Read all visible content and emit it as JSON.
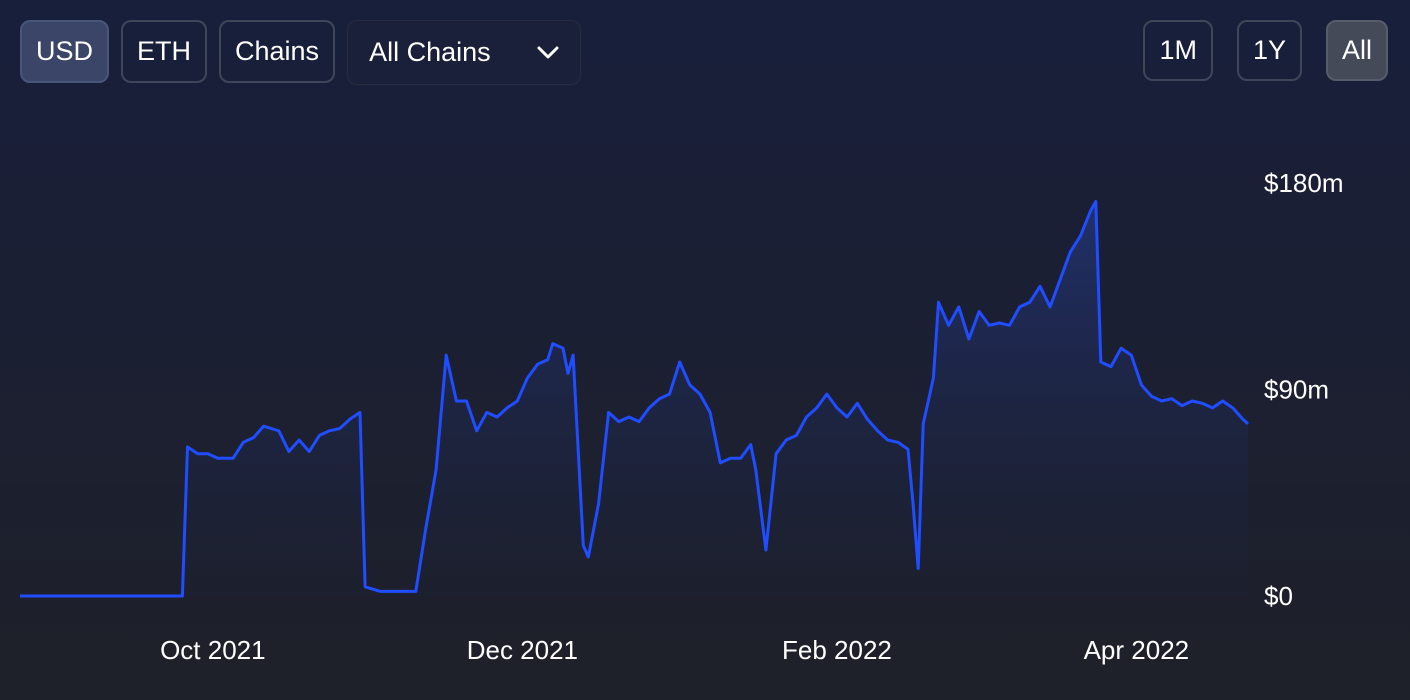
{
  "toolbar": {
    "currency_buttons": [
      {
        "label": "USD",
        "active": true
      },
      {
        "label": "ETH",
        "active": false
      },
      {
        "label": "Chains",
        "active": false
      }
    ],
    "chain_select": {
      "selected": "All Chains",
      "icon": "chevron-down-icon"
    },
    "range_buttons": [
      {
        "label": "1M",
        "active": false
      },
      {
        "label": "1Y",
        "active": false
      },
      {
        "label": "All",
        "active": true
      }
    ]
  },
  "colors": {
    "line": "#1f4dff",
    "area_top": "#243a86",
    "area_bottom": "#1a1f38"
  },
  "chart_data": {
    "type": "area",
    "title": "",
    "xlabel": "",
    "ylabel": "",
    "x_ticks": [
      "Oct 2021",
      "Dec 2021",
      "Feb 2022",
      "Apr 2022"
    ],
    "x_tick_dates": [
      "2021-10-01",
      "2021-12-01",
      "2022-02-01",
      "2022-04-01"
    ],
    "y_ticks": [
      "$180m",
      "$90m",
      "$0"
    ],
    "ylim": [
      0,
      180
    ],
    "y_unit": "$m",
    "grid": false,
    "series": [
      {
        "points": [
          [
            "2021-08-24",
            0
          ],
          [
            "2021-09-01",
            0
          ],
          [
            "2021-09-12",
            0
          ],
          [
            "2021-09-25",
            0
          ],
          [
            "2021-09-26",
            65
          ],
          [
            "2021-09-28",
            62
          ],
          [
            "2021-09-30",
            62
          ],
          [
            "2021-10-02",
            60
          ],
          [
            "2021-10-05",
            60
          ],
          [
            "2021-10-07",
            67
          ],
          [
            "2021-10-09",
            69
          ],
          [
            "2021-10-11",
            74
          ],
          [
            "2021-10-14",
            72
          ],
          [
            "2021-10-16",
            63
          ],
          [
            "2021-10-18",
            68
          ],
          [
            "2021-10-20",
            63
          ],
          [
            "2021-10-22",
            70
          ],
          [
            "2021-10-24",
            72
          ],
          [
            "2021-10-26",
            73
          ],
          [
            "2021-10-28",
            77
          ],
          [
            "2021-10-30",
            80
          ],
          [
            "2021-10-31",
            4
          ],
          [
            "2021-11-03",
            2
          ],
          [
            "2021-11-08",
            2
          ],
          [
            "2021-11-10",
            2
          ],
          [
            "2021-11-12",
            30
          ],
          [
            "2021-11-14",
            55
          ],
          [
            "2021-11-16",
            105
          ],
          [
            "2021-11-18",
            85
          ],
          [
            "2021-11-20",
            85
          ],
          [
            "2021-11-22",
            72
          ],
          [
            "2021-11-24",
            80
          ],
          [
            "2021-11-26",
            78
          ],
          [
            "2021-11-28",
            82
          ],
          [
            "2021-11-30",
            85
          ],
          [
            "2021-12-02",
            95
          ],
          [
            "2021-12-04",
            101
          ],
          [
            "2021-12-06",
            103
          ],
          [
            "2021-12-07",
            110
          ],
          [
            "2021-12-09",
            108
          ],
          [
            "2021-12-10",
            97
          ],
          [
            "2021-12-11",
            105
          ],
          [
            "2021-12-13",
            22
          ],
          [
            "2021-12-14",
            17
          ],
          [
            "2021-12-16",
            40
          ],
          [
            "2021-12-18",
            80
          ],
          [
            "2021-12-20",
            76
          ],
          [
            "2021-12-22",
            78
          ],
          [
            "2021-12-24",
            76
          ],
          [
            "2021-12-26",
            82
          ],
          [
            "2021-12-28",
            86
          ],
          [
            "2021-12-30",
            88
          ],
          [
            "2022-01-01",
            102
          ],
          [
            "2022-01-03",
            92
          ],
          [
            "2022-01-05",
            88
          ],
          [
            "2022-01-07",
            80
          ],
          [
            "2022-01-09",
            58
          ],
          [
            "2022-01-11",
            60
          ],
          [
            "2022-01-13",
            60
          ],
          [
            "2022-01-15",
            66
          ],
          [
            "2022-01-16",
            55
          ],
          [
            "2022-01-18",
            20
          ],
          [
            "2022-01-20",
            62
          ],
          [
            "2022-01-22",
            68
          ],
          [
            "2022-01-24",
            70
          ],
          [
            "2022-01-26",
            78
          ],
          [
            "2022-01-28",
            82
          ],
          [
            "2022-01-30",
            88
          ],
          [
            "2022-02-01",
            82
          ],
          [
            "2022-02-03",
            78
          ],
          [
            "2022-02-05",
            84
          ],
          [
            "2022-02-07",
            77
          ],
          [
            "2022-02-09",
            72
          ],
          [
            "2022-02-11",
            68
          ],
          [
            "2022-02-13",
            67
          ],
          [
            "2022-02-15",
            64
          ],
          [
            "2022-02-16",
            40
          ],
          [
            "2022-02-17",
            12
          ],
          [
            "2022-02-18",
            75
          ],
          [
            "2022-02-20",
            95
          ],
          [
            "2022-02-21",
            128
          ],
          [
            "2022-02-23",
            118
          ],
          [
            "2022-02-25",
            126
          ],
          [
            "2022-02-27",
            112
          ],
          [
            "2022-03-01",
            124
          ],
          [
            "2022-03-03",
            118
          ],
          [
            "2022-03-05",
            119
          ],
          [
            "2022-03-07",
            118
          ],
          [
            "2022-03-09",
            126
          ],
          [
            "2022-03-11",
            128
          ],
          [
            "2022-03-13",
            135
          ],
          [
            "2022-03-15",
            126
          ],
          [
            "2022-03-17",
            138
          ],
          [
            "2022-03-19",
            150
          ],
          [
            "2022-03-21",
            157
          ],
          [
            "2022-03-23",
            168
          ],
          [
            "2022-03-24",
            172
          ],
          [
            "2022-03-25",
            102
          ],
          [
            "2022-03-27",
            100
          ],
          [
            "2022-03-29",
            108
          ],
          [
            "2022-03-31",
            105
          ],
          [
            "2022-04-02",
            92
          ],
          [
            "2022-04-04",
            87
          ],
          [
            "2022-04-06",
            85
          ],
          [
            "2022-04-08",
            86
          ],
          [
            "2022-04-10",
            83
          ],
          [
            "2022-04-12",
            85
          ],
          [
            "2022-04-14",
            84
          ],
          [
            "2022-04-16",
            82
          ],
          [
            "2022-04-18",
            85
          ],
          [
            "2022-04-20",
            82
          ],
          [
            "2022-04-22",
            77
          ],
          [
            "2022-04-23",
            75
          ]
        ]
      }
    ]
  }
}
